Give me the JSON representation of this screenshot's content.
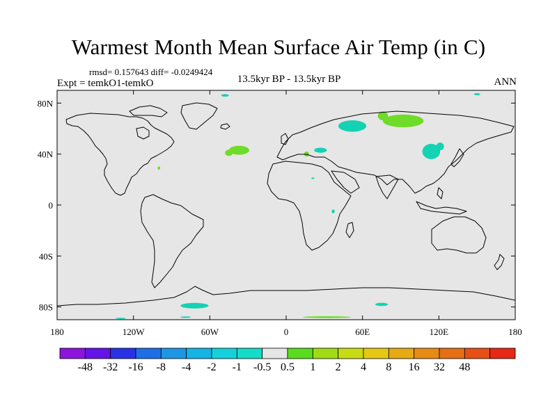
{
  "title": "Warmest Month Mean Surface Air Temp (in C)",
  "stats": "rmsd= 0.157643 diff= -0.0249424",
  "expt": "Expt = temkO1-temkO",
  "center_label": "13.5kyr BP - 13.5kyr BP",
  "corner_label": "ANN",
  "map": {
    "lon_range": [
      -180,
      180
    ],
    "lat_range": [
      -90,
      90
    ],
    "x_ticks": [
      {
        "lon": -180,
        "label": "180"
      },
      {
        "lon": -120,
        "label": "120W"
      },
      {
        "lon": -60,
        "label": "60W"
      },
      {
        "lon": 0,
        "label": "0"
      },
      {
        "lon": 60,
        "label": "60E"
      },
      {
        "lon": 120,
        "label": "120E"
      },
      {
        "lon": 180,
        "label": "180"
      }
    ],
    "y_ticks": [
      {
        "lat": 80,
        "label": "80N"
      },
      {
        "lat": 40,
        "label": "40N"
      },
      {
        "lat": 0,
        "label": "0"
      },
      {
        "lat": -40,
        "label": "40S"
      },
      {
        "lat": -80,
        "label": "80S"
      }
    ],
    "background_color": "#e6e6e6",
    "anomaly_patches": [
      {
        "lon": -37,
        "lat": 43,
        "rx": 8,
        "ry": 3.5,
        "color": "#6edc28"
      },
      {
        "lon": -45,
        "lat": 41,
        "rx": 3,
        "ry": 2.5,
        "color": "#6edc28"
      },
      {
        "lon": -100,
        "lat": 29,
        "rx": 1,
        "ry": 1.2,
        "color": "#6edc28"
      },
      {
        "lon": 16,
        "lat": 40,
        "rx": 2,
        "ry": 2,
        "color": "#6edc28"
      },
      {
        "lon": 92,
        "lat": 66,
        "rx": 16,
        "ry": 5,
        "color": "#6edc28"
      },
      {
        "lon": 76,
        "lat": 70,
        "rx": 4,
        "ry": 3.5,
        "color": "#6edc28"
      },
      {
        "lon": 52,
        "lat": 62,
        "rx": 11,
        "ry": 4.5,
        "color": "#14d2b4"
      },
      {
        "lon": 114,
        "lat": 42,
        "rx": 7,
        "ry": 6,
        "color": "#14d2b4"
      },
      {
        "lon": 121,
        "lat": 46,
        "rx": 3,
        "ry": 3,
        "color": "#14d2b4"
      },
      {
        "lon": 27,
        "lat": 43,
        "rx": 5,
        "ry": 2,
        "color": "#14d2b4"
      },
      {
        "lon": -48,
        "lat": 86,
        "rx": 3,
        "ry": 1,
        "color": "#14d2b4"
      },
      {
        "lon": 150,
        "lat": 87,
        "rx": 2.5,
        "ry": 0.8,
        "color": "#14d2b4"
      },
      {
        "lon": 37,
        "lat": -5,
        "rx": 1.2,
        "ry": 1.5,
        "color": "#14d2b4"
      },
      {
        "lon": 21,
        "lat": 21,
        "rx": 1.2,
        "ry": 0.6,
        "color": "#14d2b4"
      },
      {
        "lon": -72,
        "lat": -79,
        "rx": 11,
        "ry": 2.2,
        "color": "#14d2b4"
      },
      {
        "lon": 75,
        "lat": -78,
        "rx": 5,
        "ry": 1.3,
        "color": "#14d2b4"
      },
      {
        "lon": 32,
        "lat": -88,
        "rx": 19,
        "ry": 0.7,
        "color": "#6edc28"
      },
      {
        "lon": -79,
        "lat": -88,
        "rx": 4,
        "ry": 0.6,
        "color": "#14d2b4"
      },
      {
        "lon": -130,
        "lat": -89,
        "rx": 4,
        "ry": 0.5,
        "color": "#14d2b4"
      }
    ]
  },
  "colorbar": {
    "colors": [
      "#8c14dc",
      "#6414e6",
      "#2832e6",
      "#1e6ee6",
      "#1e96e6",
      "#14b4e6",
      "#14d2dc",
      "#14dcc8",
      "#e6e6e6",
      "#5adc1e",
      "#a0dc14",
      "#c8dc14",
      "#e6c814",
      "#e6aa14",
      "#e68c14",
      "#e66e14",
      "#e65014",
      "#e62814"
    ],
    "labels": [
      "-48",
      "-32",
      "-16",
      "-8",
      "-4",
      "-2",
      "-1",
      "-0.5",
      "0.5",
      "1",
      "2",
      "4",
      "8",
      "16",
      "32",
      "48"
    ]
  }
}
